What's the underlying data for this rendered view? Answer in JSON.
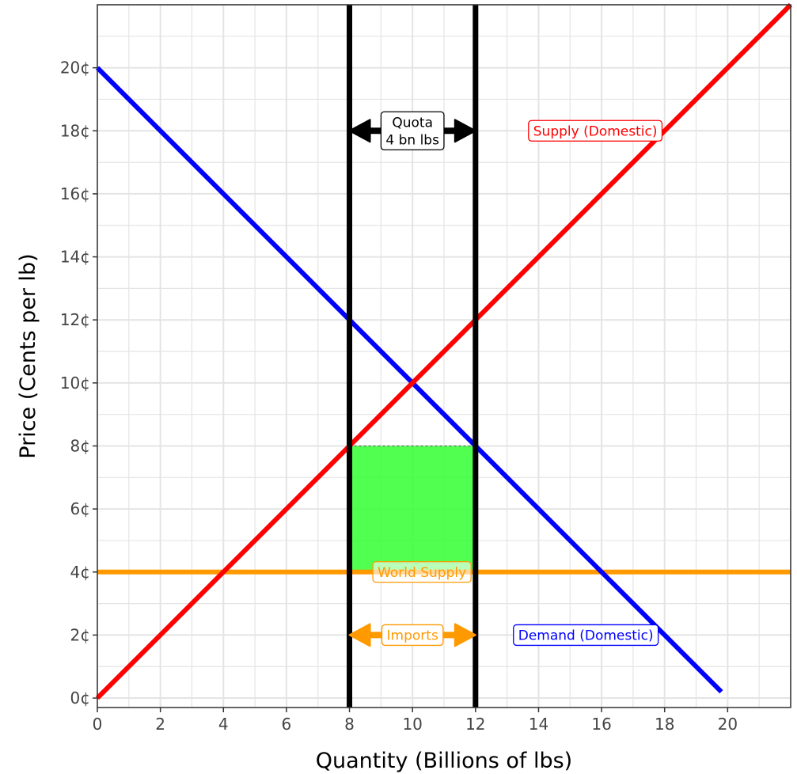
{
  "chart_data": {
    "type": "line",
    "xlabel": "Quantity (Billions of lbs)",
    "ylabel": "Price (Cents per lb)",
    "xlim": [
      0,
      22
    ],
    "ylim": [
      -0.3,
      22
    ],
    "x_ticks": [
      0,
      2,
      4,
      6,
      8,
      10,
      12,
      14,
      16,
      18,
      20
    ],
    "x_tick_labels": [
      "0",
      "2",
      "4",
      "6",
      "8",
      "10",
      "12",
      "14",
      "16",
      "18",
      "20"
    ],
    "y_ticks": [
      0,
      2,
      4,
      6,
      8,
      10,
      12,
      14,
      16,
      18,
      20
    ],
    "y_tick_labels": [
      "0¢",
      "2¢",
      "4¢",
      "6¢",
      "8¢",
      "10¢",
      "12¢",
      "14¢",
      "16¢",
      "18¢",
      "20¢"
    ],
    "grid": true,
    "series": [
      {
        "name": "Supply (Domestic)",
        "color": "#ff0000",
        "points": [
          [
            0,
            0
          ],
          [
            22,
            22
          ]
        ]
      },
      {
        "name": "Demand (Domestic)",
        "color": "#0000ff",
        "points": [
          [
            0,
            20
          ],
          [
            19.8,
            0.2
          ]
        ]
      },
      {
        "name": "World Supply",
        "color": "#ff9900",
        "points": [
          [
            0,
            4
          ],
          [
            22,
            4
          ]
        ]
      }
    ],
    "vlines": [
      {
        "x": 8,
        "color": "#000000"
      },
      {
        "x": 12,
        "color": "#000000"
      }
    ],
    "shaded_region": {
      "x": [
        8,
        12
      ],
      "y": [
        4,
        8
      ],
      "color": "#33ff33"
    },
    "annotations": [
      {
        "text": "Supply (Domestic)",
        "x": 15.8,
        "y": 18,
        "color": "#ff0000"
      },
      {
        "text": "Demand (Domestic)",
        "x": 15.5,
        "y": 2,
        "color": "#0000ff"
      },
      {
        "text": "World Supply",
        "x": 10.3,
        "y": 4,
        "color": "#ff9900"
      },
      {
        "text": "Imports",
        "x": 10,
        "y": 2,
        "color": "#ff9900"
      },
      {
        "text": "Quota\n4 bn lbs",
        "x": 10,
        "y": 18,
        "color": "#000000"
      }
    ],
    "arrows": [
      {
        "name": "quota",
        "from": 8,
        "to": 12,
        "y": 18,
        "color": "#000000"
      },
      {
        "name": "imports",
        "from": 8,
        "to": 12,
        "y": 2,
        "color": "#ff9900"
      }
    ]
  }
}
